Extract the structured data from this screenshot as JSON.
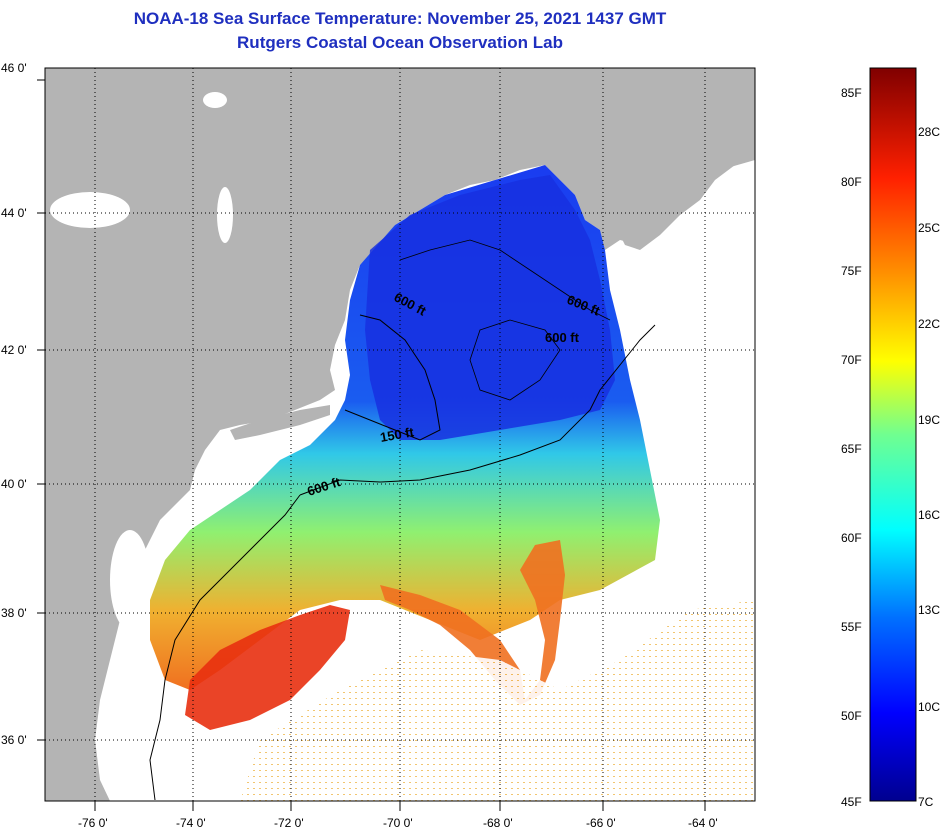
{
  "title": {
    "line1": "NOAA-18 Sea Surface Temperature:  November 25, 2021 1437 GMT",
    "line2": "Rutgers Coastal Ocean Observation Lab"
  },
  "map": {
    "lat_labels": [
      "46 0'",
      "44 0'",
      "42 0'",
      "40 0'",
      "38 0'",
      "36 0'"
    ],
    "lon_labels": [
      "-76 0'",
      "-74 0'",
      "-72 0'",
      "-70 0'",
      "-68 0'",
      "-66 0'",
      "-64 0'"
    ],
    "contour_labels": [
      "600 ft",
      "600 ft",
      "600 ft",
      "150 ft",
      "600 ft"
    ],
    "colors": {
      "land": "#b4b4b4",
      "cloud": "#ffffff",
      "grid": "#000000"
    }
  },
  "colorbar": {
    "f_labels": [
      "85F",
      "80F",
      "75F",
      "70F",
      "65F",
      "60F",
      "55F",
      "50F",
      "45F"
    ],
    "c_labels": [
      "28C",
      "25C",
      "22C",
      "19C",
      "16C",
      "13C",
      "10C",
      "7C"
    ]
  }
}
